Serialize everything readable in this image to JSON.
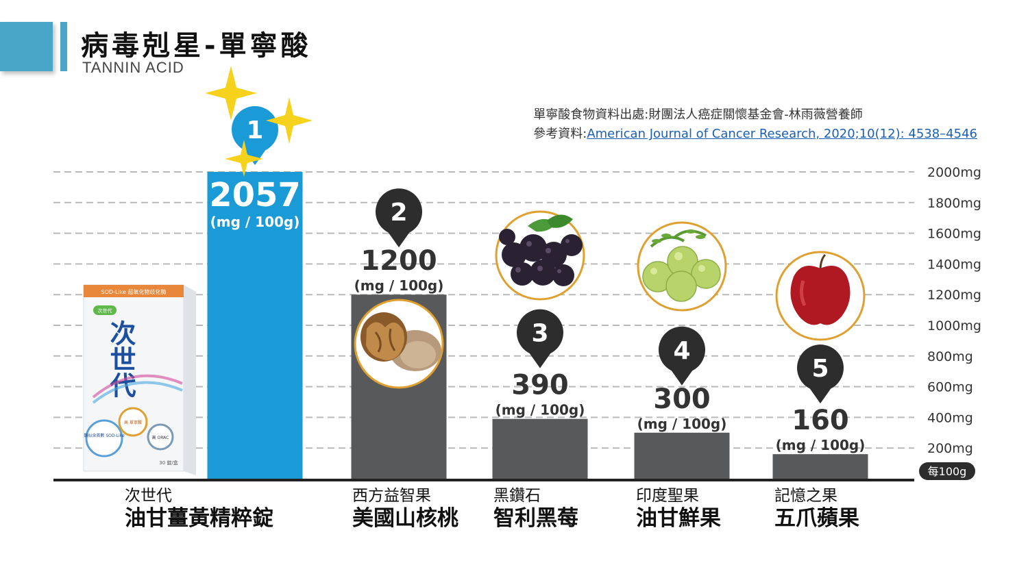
{
  "header": {
    "title": "病毒剋星-單寧酸",
    "subtitle": "TANNIN ACID"
  },
  "source": {
    "line1": "單寧酸食物資料出處:財團法人癌症關懷基金會-林雨薇營養師",
    "line2_prefix": "參考資料:",
    "line2_link": "American Journal of Cancer Research, 2020;10(12): 4538–4546"
  },
  "product": {
    "box_top": "SOD-Like 超氧化物歧化酶",
    "brand_small": "次世代",
    "brand_big": "次世代",
    "badge1": "類似含首數 SOD-Like",
    "badge2": "高 單寧酸",
    "badge3": "高 ORAC",
    "count": "30 錠/盒"
  },
  "chart_data": {
    "type": "bar",
    "categories": [
      "次世代 油甘薑黃精粹錠",
      "西方益智果 美國山核桃",
      "黑鑽石 智利黑莓",
      "印度聖果 油甘鮮果",
      "記憶之果 五爪蘋果"
    ],
    "category_sub": [
      "次世代",
      "西方益智果",
      "黑鑽石",
      "印度聖果",
      "記憶之果"
    ],
    "category_main": [
      "油甘薑黃精粹錠",
      "美國山核桃",
      "智利黑莓",
      "油甘鮮果",
      "五爪蘋果"
    ],
    "values": [
      2057,
      1200,
      390,
      300,
      160
    ],
    "value_labels": [
      "2057",
      "1200",
      "390",
      "300",
      "160"
    ],
    "unit_label": "(mg / 100g)",
    "ranks": [
      "1",
      "2",
      "3",
      "4",
      "5"
    ],
    "ylim": [
      0,
      2000
    ],
    "yticks": [
      200,
      400,
      600,
      800,
      1000,
      1200,
      1400,
      1600,
      1800,
      2000
    ],
    "ytick_labels": [
      "200mg",
      "400mg",
      "600mg",
      "800mg",
      "1000mg",
      "1200mg",
      "1400mg",
      "1600mg",
      "1800mg",
      "2000mg"
    ],
    "axis_badge": "每100g",
    "grid": true,
    "colors": {
      "highlight": "#1a9ad6",
      "bar": "#58595b",
      "badge": "#1a9ad6",
      "marker": "#2d2d2d",
      "ring": "#e0a030"
    },
    "icons": [
      "walnut-icon",
      "blackberry-icon",
      "amla-fruit-icon",
      "apple-icon"
    ]
  }
}
